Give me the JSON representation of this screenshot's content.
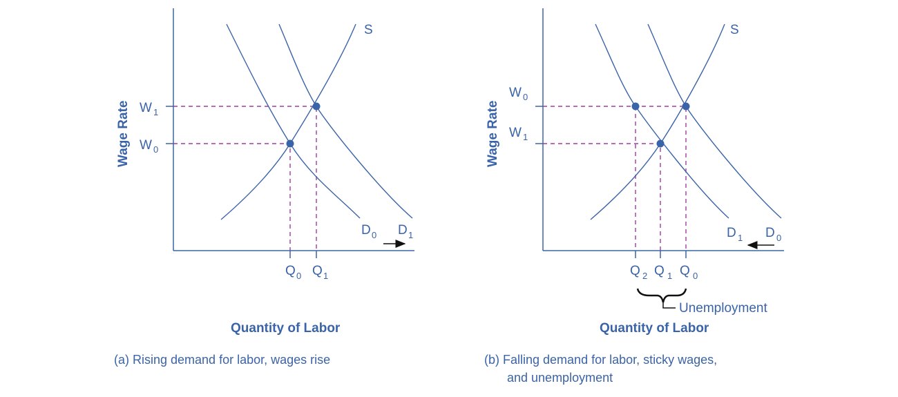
{
  "colors": {
    "curve": "#3a63a8",
    "dashed": "#a03ca0",
    "arrow": "#111111"
  },
  "panel_a": {
    "y_label": "Wage Rate",
    "x_label": "Quantity of Labor",
    "w_top": "W",
    "w_top_sub": "1",
    "w_bottom": "W",
    "w_bottom_sub": "0",
    "q_left": "Q",
    "q_left_sub": "0",
    "q_right": "Q",
    "q_right_sub": "1",
    "supply": "S",
    "d_left": "D",
    "d_left_sub": "0",
    "d_right": "D",
    "d_right_sub": "1",
    "caption": "(a) Rising demand for labor, wages rise"
  },
  "panel_b": {
    "y_label": "Wage Rate",
    "x_label": "Quantity of Labor",
    "w_top": "W",
    "w_top_sub": "0",
    "w_bottom": "W",
    "w_bottom_sub": "1",
    "q_a": "Q",
    "q_a_sub": "2",
    "q_b": "Q",
    "q_b_sub": "1",
    "q_c": "Q",
    "q_c_sub": "0",
    "supply": "S",
    "d_left": "D",
    "d_left_sub": "1",
    "d_right": "D",
    "d_right_sub": "0",
    "brace_label": "Unemployment",
    "caption_line1": "(b) Falling demand for labor, sticky wages,",
    "caption_line2": "and unemployment"
  }
}
